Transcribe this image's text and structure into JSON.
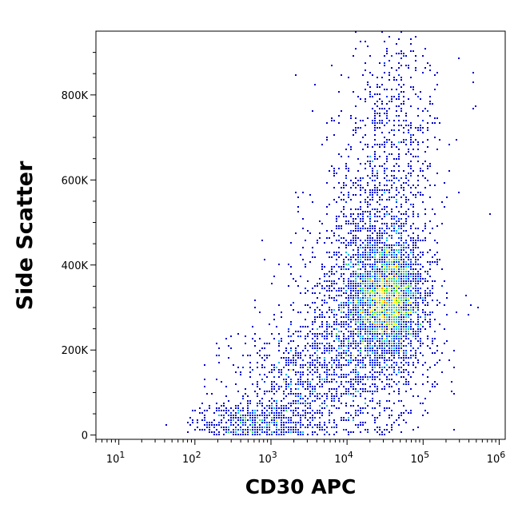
{
  "chart_data": {
    "type": "scatter",
    "title": "",
    "xlabel": "CD30 APC",
    "ylabel": "Side Scatter",
    "x_scale": "log",
    "xlim": [
      5,
      1200000
    ],
    "ylim": [
      -10000,
      950000
    ],
    "grid": false,
    "legend": "none",
    "x_ticks": [
      {
        "value": 10,
        "base": "10",
        "exp": "1"
      },
      {
        "value": 100,
        "base": "10",
        "exp": "2"
      },
      {
        "value": 1000,
        "base": "10",
        "exp": "3"
      },
      {
        "value": 10000,
        "base": "10",
        "exp": "4"
      },
      {
        "value": 100000,
        "base": "10",
        "exp": "5"
      },
      {
        "value": 1000000,
        "base": "10",
        "exp": "6"
      }
    ],
    "y_ticks": [
      {
        "value": 0,
        "label": "0"
      },
      {
        "value": 200000,
        "label": "200K"
      },
      {
        "value": 400000,
        "label": "400K"
      },
      {
        "value": 600000,
        "label": "600K"
      },
      {
        "value": 800000,
        "label": "800K"
      }
    ],
    "density_colors": [
      "#0000cc",
      "#0033ff",
      "#00bbee",
      "#33dd33",
      "#ffee00",
      "#ff8800",
      "#dd0000"
    ],
    "populations": [
      {
        "name_visible": false,
        "center_log10_x": 4.55,
        "center_y": 320000,
        "sd_log10_x": 0.22,
        "sd_y": 70000,
        "n": 2200
      },
      {
        "center_log10_x": 4.25,
        "center_y": 260000,
        "sd_log10_x": 0.45,
        "sd_y": 120000,
        "n": 1800
      },
      {
        "center_log10_x": 4.45,
        "center_y": 520000,
        "sd_log10_x": 0.35,
        "sd_y": 150000,
        "n": 900
      },
      {
        "center_log10_x": 3.4,
        "center_y": 130000,
        "sd_log10_x": 0.45,
        "sd_y": 70000,
        "n": 700
      },
      {
        "center_log10_x": 2.8,
        "center_y": 30000,
        "sd_log10_x": 0.4,
        "sd_y": 25000,
        "n": 500
      },
      {
        "center_log10_x": 4.7,
        "center_y": 780000,
        "sd_log10_x": 0.3,
        "sd_y": 100000,
        "n": 250
      }
    ],
    "saturated_top_y": 950000
  }
}
